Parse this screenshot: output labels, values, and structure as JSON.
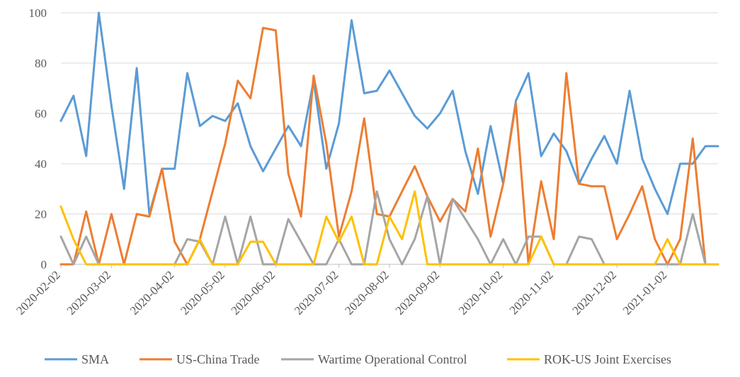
{
  "chart_data": {
    "type": "line",
    "title": "",
    "xlabel": "",
    "ylabel": "",
    "ylim": [
      0,
      100
    ],
    "yticks": [
      0,
      20,
      40,
      60,
      80,
      100
    ],
    "grid": "horizontal",
    "legend": "bottom",
    "x_tick_labels": [
      "2020-02-02",
      "2020-03-02",
      "2020-04-02",
      "2020-05-02",
      "2020-06-02",
      "2020-07-02",
      "2020-08-02",
      "2020-09-02",
      "2020-10-02",
      "2020-11-02",
      "2020-12-02",
      "2021-01-02"
    ],
    "x_tick_week_index": [
      0,
      4,
      9,
      13,
      17,
      22,
      26,
      30,
      35,
      39,
      44,
      48
    ],
    "num_weeks": 53,
    "series": [
      {
        "name": "SMA",
        "color": "#5B9BD5",
        "values": [
          57,
          67,
          43,
          100,
          63,
          30,
          78,
          20,
          38,
          38,
          76,
          55,
          59,
          57,
          64,
          47,
          37,
          46,
          55,
          47,
          73,
          38,
          56,
          97,
          68,
          69,
          77,
          68,
          59,
          54,
          60,
          69,
          45,
          28,
          55,
          32,
          65,
          76,
          43,
          52,
          45,
          32,
          42,
          51,
          40,
          69,
          42,
          30,
          20,
          40,
          40,
          47,
          47
        ]
      },
      {
        "name": "US-China Trade",
        "color": "#ED7D31",
        "values": [
          0,
          0,
          21,
          0,
          20,
          0,
          20,
          19,
          38,
          9,
          0,
          10,
          29,
          48,
          73,
          66,
          94,
          93,
          36,
          19,
          75,
          48,
          11,
          29,
          58,
          20,
          19,
          29,
          39,
          27,
          17,
          26,
          21,
          46,
          11,
          32,
          64,
          0,
          33,
          10,
          76,
          32,
          31,
          31,
          10,
          20,
          31,
          10,
          0,
          10,
          50,
          0,
          0
        ]
      },
      {
        "name": "Wartime Operational Control",
        "color": "#A5A5A5",
        "values": [
          11,
          0,
          11,
          0,
          0,
          0,
          0,
          0,
          0,
          0,
          10,
          9,
          0,
          19,
          0,
          19,
          0,
          0,
          18,
          9,
          0,
          0,
          10,
          0,
          0,
          29,
          10,
          0,
          10,
          27,
          0,
          26,
          18,
          10,
          0,
          10,
          0,
          11,
          11,
          0,
          0,
          11,
          10,
          0,
          0,
          0,
          0,
          0,
          0,
          0,
          20,
          0,
          0
        ]
      },
      {
        "name": "ROK-US Joint Exercises",
        "color": "#FFC000",
        "values": [
          23,
          10,
          0,
          0,
          0,
          0,
          0,
          0,
          0,
          0,
          0,
          10,
          0,
          0,
          0,
          9,
          9,
          0,
          0,
          0,
          0,
          19,
          9,
          19,
          0,
          0,
          19,
          10,
          29,
          0,
          0,
          0,
          0,
          0,
          0,
          0,
          0,
          0,
          11,
          0,
          0,
          0,
          0,
          0,
          0,
          0,
          0,
          0,
          10,
          0,
          0,
          0,
          0
        ]
      }
    ]
  }
}
